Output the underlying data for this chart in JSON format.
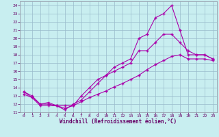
{
  "xlabel": "Windchill (Refroidissement éolien,°C)",
  "background_color": "#c8eef0",
  "line_color": "#aa00aa",
  "grid_color": "#99bbcc",
  "xlim": [
    -0.5,
    23.5
  ],
  "ylim": [
    11,
    24.5
  ],
  "xticks": [
    0,
    1,
    2,
    3,
    4,
    5,
    6,
    7,
    8,
    9,
    10,
    11,
    12,
    13,
    14,
    15,
    16,
    17,
    18,
    19,
    20,
    21,
    22,
    23
  ],
  "yticks": [
    11,
    12,
    13,
    14,
    15,
    16,
    17,
    18,
    19,
    20,
    21,
    22,
    23,
    24
  ],
  "line1_x": [
    0,
    1,
    2,
    3,
    4,
    5,
    6,
    7,
    8,
    9,
    10,
    11,
    12,
    13,
    14,
    15,
    16,
    17,
    18,
    19,
    20,
    21,
    22,
    23
  ],
  "line1_y": [
    13.5,
    13.0,
    12.0,
    12.2,
    11.8,
    11.3,
    12.0,
    12.5,
    13.5,
    14.5,
    15.5,
    16.5,
    17.0,
    17.5,
    20.0,
    20.5,
    22.5,
    23.0,
    24.0,
    21.0,
    18.0,
    18.0,
    18.0,
    17.5
  ],
  "line2_x": [
    0,
    1,
    2,
    3,
    4,
    5,
    6,
    7,
    8,
    9,
    10,
    11,
    12,
    13,
    14,
    15,
    16,
    17,
    18,
    19,
    20,
    21,
    22,
    23
  ],
  "line2_y": [
    13.5,
    12.8,
    11.8,
    11.8,
    11.8,
    11.5,
    11.8,
    13.0,
    14.0,
    15.0,
    15.5,
    16.0,
    16.5,
    17.0,
    18.5,
    18.5,
    19.5,
    20.5,
    20.5,
    19.5,
    18.5,
    18.0,
    18.0,
    17.5
  ],
  "line3_x": [
    0,
    1,
    2,
    3,
    4,
    5,
    6,
    7,
    8,
    9,
    10,
    11,
    12,
    13,
    14,
    15,
    16,
    17,
    18,
    19,
    20,
    21,
    22,
    23
  ],
  "line3_y": [
    13.2,
    12.8,
    12.0,
    12.0,
    11.8,
    11.8,
    11.8,
    12.3,
    12.8,
    13.2,
    13.6,
    14.1,
    14.5,
    15.0,
    15.5,
    16.2,
    16.8,
    17.3,
    17.8,
    18.0,
    17.5,
    17.5,
    17.5,
    17.3
  ]
}
